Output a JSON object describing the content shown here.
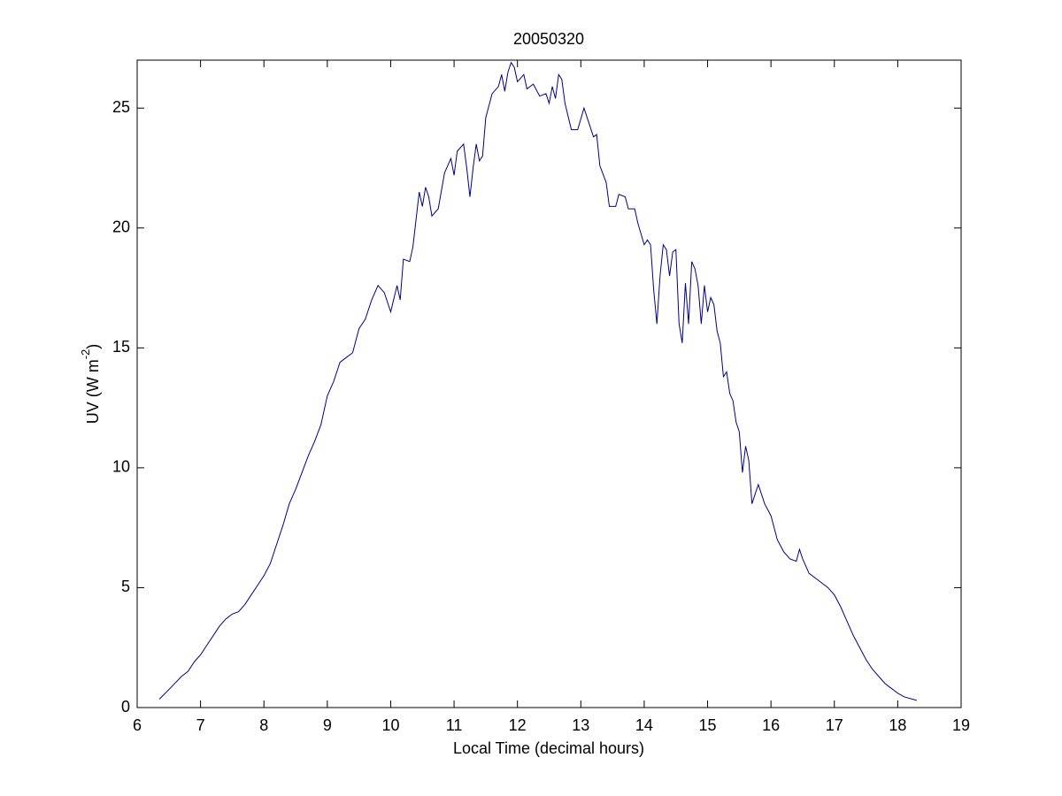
{
  "chart_data": {
    "type": "line",
    "title": "20050320",
    "xlabel": "Local Time (decimal hours)",
    "ylabel_parts": [
      "UV (W m",
      "-2",
      ")"
    ],
    "xlim": [
      6,
      19
    ],
    "xticks": [
      6,
      7,
      8,
      9,
      10,
      11,
      12,
      13,
      14,
      15,
      16,
      17,
      18,
      19
    ],
    "ylim": [
      0,
      27
    ],
    "yticks": [
      0,
      5,
      10,
      15,
      20,
      25
    ],
    "x": [
      6.35,
      6.5,
      6.7,
      6.8,
      6.9,
      7.0,
      7.1,
      7.2,
      7.3,
      7.4,
      7.5,
      7.6,
      7.7,
      7.8,
      7.9,
      8.0,
      8.1,
      8.2,
      8.3,
      8.4,
      8.5,
      8.6,
      8.7,
      8.8,
      8.9,
      9.0,
      9.1,
      9.2,
      9.3,
      9.4,
      9.5,
      9.6,
      9.7,
      9.8,
      9.9,
      10.0,
      10.1,
      10.15,
      10.2,
      10.3,
      10.35,
      10.45,
      10.5,
      10.55,
      10.6,
      10.65,
      10.75,
      10.85,
      10.95,
      11.0,
      11.05,
      11.15,
      11.2,
      11.25,
      11.3,
      11.35,
      11.4,
      11.45,
      11.5,
      11.6,
      11.7,
      11.75,
      11.8,
      11.85,
      11.9,
      11.95,
      12.0,
      12.1,
      12.15,
      12.25,
      12.35,
      12.45,
      12.5,
      12.55,
      12.6,
      12.65,
      12.7,
      12.75,
      12.85,
      12.95,
      13.05,
      13.1,
      13.2,
      13.25,
      13.3,
      13.4,
      13.45,
      13.55,
      13.6,
      13.7,
      13.75,
      13.85,
      13.9,
      14.0,
      14.05,
      14.1,
      14.15,
      14.2,
      14.25,
      14.3,
      14.35,
      14.4,
      14.45,
      14.5,
      14.55,
      14.6,
      14.65,
      14.7,
      14.75,
      14.8,
      14.85,
      14.9,
      14.95,
      15.0,
      15.05,
      15.1,
      15.15,
      15.2,
      15.25,
      15.3,
      15.35,
      15.4,
      15.45,
      15.5,
      15.55,
      15.6,
      15.65,
      15.7,
      15.8,
      15.9,
      16.0,
      16.1,
      16.2,
      16.3,
      16.4,
      16.45,
      16.5,
      16.6,
      16.7,
      16.8,
      16.9,
      17.0,
      17.1,
      17.2,
      17.3,
      17.4,
      17.5,
      17.6,
      17.7,
      17.8,
      17.9,
      18.0,
      18.1,
      18.3
    ],
    "series": [
      {
        "color": "#00008b",
        "values": [
          0.35,
          0.75,
          1.3,
          1.5,
          1.9,
          2.2,
          2.6,
          3.0,
          3.4,
          3.7,
          3.9,
          4.0,
          4.3,
          4.7,
          5.1,
          5.5,
          6.0,
          6.8,
          7.6,
          8.5,
          9.1,
          9.8,
          10.5,
          11.1,
          11.8,
          13.0,
          13.6,
          14.4,
          14.6,
          14.8,
          15.8,
          16.2,
          17.0,
          17.6,
          17.3,
          16.5,
          17.6,
          17.0,
          18.7,
          18.6,
          19.2,
          21.5,
          20.9,
          21.7,
          21.3,
          20.5,
          20.8,
          22.3,
          22.9,
          22.2,
          23.2,
          23.5,
          22.5,
          21.3,
          22.5,
          23.5,
          22.8,
          23.0,
          24.6,
          25.6,
          25.9,
          26.4,
          25.7,
          26.5,
          26.9,
          26.7,
          26.1,
          26.4,
          25.8,
          26.0,
          25.5,
          25.6,
          25.2,
          25.9,
          25.4,
          26.4,
          26.2,
          25.2,
          24.1,
          24.1,
          25.0,
          24.6,
          23.8,
          23.9,
          22.6,
          21.9,
          20.9,
          20.9,
          21.4,
          21.3,
          20.8,
          20.8,
          20.2,
          19.3,
          19.5,
          19.3,
          17.4,
          16.0,
          18.0,
          19.3,
          19.1,
          18.0,
          19.0,
          19.1,
          16.0,
          15.2,
          17.7,
          16.0,
          18.6,
          18.3,
          17.6,
          16.0,
          17.6,
          16.5,
          17.1,
          16.8,
          15.7,
          15.2,
          13.8,
          14.0,
          13.1,
          12.8,
          11.9,
          11.5,
          9.8,
          10.9,
          10.3,
          8.5,
          9.3,
          8.5,
          8.0,
          7.0,
          6.5,
          6.2,
          6.1,
          6.6,
          6.2,
          5.6,
          5.4,
          5.2,
          5.0,
          4.7,
          4.2,
          3.6,
          3.0,
          2.5,
          2.0,
          1.6,
          1.3,
          1.0,
          0.8,
          0.6,
          0.45,
          0.3
        ]
      }
    ]
  }
}
